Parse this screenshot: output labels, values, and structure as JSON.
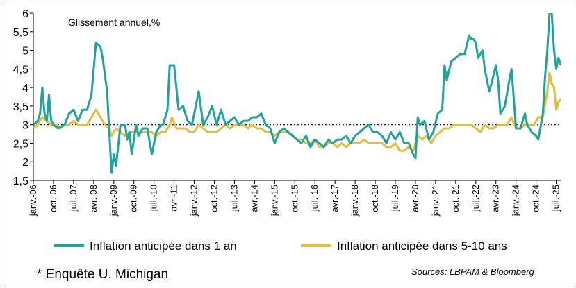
{
  "chart_data": {
    "type": "line",
    "title": "",
    "subtitle": "Glissement annuel,%",
    "xlabel": "",
    "ylabel": "",
    "ylim": [
      1.5,
      6
    ],
    "yticks": [
      "1,5",
      "2",
      "2,5",
      "3",
      "3,5",
      "4",
      "4,5",
      "5",
      "5,5",
      "6"
    ],
    "reference_line": 3,
    "x_start": "2006-01",
    "x_end": "2025-09",
    "xticks": [
      {
        "date": "2006-01",
        "label": "janv.-06"
      },
      {
        "date": "2006-10",
        "label": "oct.-06"
      },
      {
        "date": "2007-07",
        "label": "juil.-07"
      },
      {
        "date": "2008-04",
        "label": "avr.-08"
      },
      {
        "date": "2009-01",
        "label": "janv.-09"
      },
      {
        "date": "2009-10",
        "label": "oct.-09"
      },
      {
        "date": "2010-07",
        "label": "juil.-10"
      },
      {
        "date": "2011-04",
        "label": "avr.-11"
      },
      {
        "date": "2012-01",
        "label": "janv.-12"
      },
      {
        "date": "2012-10",
        "label": "oct.-12"
      },
      {
        "date": "2013-07",
        "label": "juil.-13"
      },
      {
        "date": "2014-04",
        "label": "avr.-14"
      },
      {
        "date": "2015-01",
        "label": "janv.-15"
      },
      {
        "date": "2015-10",
        "label": "oct.-15"
      },
      {
        "date": "2016-07",
        "label": "juil.-16"
      },
      {
        "date": "2017-04",
        "label": "avr.-17"
      },
      {
        "date": "2018-01",
        "label": "janv.-18"
      },
      {
        "date": "2018-10",
        "label": "oct.-18"
      },
      {
        "date": "2019-07",
        "label": "juil.-19"
      },
      {
        "date": "2020-04",
        "label": "avr.-20"
      },
      {
        "date": "2021-01",
        "label": "janv.-21"
      },
      {
        "date": "2021-10",
        "label": "oct.-21"
      },
      {
        "date": "2022-07",
        "label": "juil.-22"
      },
      {
        "date": "2023-04",
        "label": "avr.-23"
      },
      {
        "date": "2024-01",
        "label": "janv.-24"
      },
      {
        "date": "2024-10",
        "label": "oct.-24"
      },
      {
        "date": "2025-07",
        "label": "juil.-25"
      }
    ],
    "series": [
      {
        "name": "Inflation anticipée dans 1 an",
        "color": "#20a39e",
        "points": [
          [
            "2006-01",
            3.0
          ],
          [
            "2006-03",
            3.1
          ],
          [
            "2006-04",
            3.3
          ],
          [
            "2006-05",
            4.0
          ],
          [
            "2006-06",
            3.3
          ],
          [
            "2006-07",
            3.1
          ],
          [
            "2006-08",
            3.8
          ],
          [
            "2006-09",
            3.1
          ],
          [
            "2006-10",
            3.0
          ],
          [
            "2006-12",
            2.9
          ],
          [
            "2007-03",
            3.0
          ],
          [
            "2007-05",
            3.3
          ],
          [
            "2007-07",
            3.4
          ],
          [
            "2007-09",
            3.1
          ],
          [
            "2007-11",
            3.4
          ],
          [
            "2008-01",
            3.4
          ],
          [
            "2008-03",
            3.8
          ],
          [
            "2008-05",
            5.2
          ],
          [
            "2008-07",
            5.1
          ],
          [
            "2008-08",
            4.8
          ],
          [
            "2008-10",
            3.9
          ],
          [
            "2008-11",
            2.8
          ],
          [
            "2008-12",
            1.7
          ],
          [
            "2009-01",
            2.2
          ],
          [
            "2009-02",
            1.9
          ],
          [
            "2009-04",
            3.0
          ],
          [
            "2009-06",
            3.0
          ],
          [
            "2009-07",
            2.6
          ],
          [
            "2009-08",
            2.8
          ],
          [
            "2009-09",
            2.2
          ],
          [
            "2009-11",
            3.0
          ],
          [
            "2009-12",
            2.7
          ],
          [
            "2010-02",
            2.9
          ],
          [
            "2010-04",
            2.9
          ],
          [
            "2010-06",
            2.2
          ],
          [
            "2010-08",
            2.8
          ],
          [
            "2010-10",
            3.0
          ],
          [
            "2010-11",
            3.0
          ],
          [
            "2011-01",
            3.4
          ],
          [
            "2011-02",
            4.6
          ],
          [
            "2011-04",
            4.6
          ],
          [
            "2011-06",
            3.4
          ],
          [
            "2011-08",
            3.5
          ],
          [
            "2011-10",
            3.1
          ],
          [
            "2011-12",
            3.0
          ],
          [
            "2012-02",
            3.6
          ],
          [
            "2012-03",
            3.9
          ],
          [
            "2012-05",
            3.0
          ],
          [
            "2012-07",
            3.2
          ],
          [
            "2012-09",
            3.5
          ],
          [
            "2012-11",
            3.0
          ],
          [
            "2013-01",
            3.4
          ],
          [
            "2013-03",
            3.0
          ],
          [
            "2013-05",
            3.1
          ],
          [
            "2013-07",
            3.2
          ],
          [
            "2013-09",
            3.0
          ],
          [
            "2013-11",
            3.1
          ],
          [
            "2014-01",
            3.1
          ],
          [
            "2014-03",
            3.2
          ],
          [
            "2014-05",
            3.2
          ],
          [
            "2014-07",
            3.3
          ],
          [
            "2014-09",
            3.0
          ],
          [
            "2014-11",
            2.9
          ],
          [
            "2015-01",
            2.5
          ],
          [
            "2015-03",
            2.8
          ],
          [
            "2015-05",
            2.9
          ],
          [
            "2015-07",
            2.8
          ],
          [
            "2015-09",
            2.7
          ],
          [
            "2015-11",
            2.6
          ],
          [
            "2016-01",
            2.5
          ],
          [
            "2016-03",
            2.7
          ],
          [
            "2016-05",
            2.4
          ],
          [
            "2016-07",
            2.6
          ],
          [
            "2016-09",
            2.5
          ],
          [
            "2016-11",
            2.4
          ],
          [
            "2017-01",
            2.6
          ],
          [
            "2017-03",
            2.5
          ],
          [
            "2017-05",
            2.6
          ],
          [
            "2017-07",
            2.6
          ],
          [
            "2017-09",
            2.7
          ],
          [
            "2017-11",
            2.5
          ],
          [
            "2018-01",
            2.7
          ],
          [
            "2018-03",
            2.8
          ],
          [
            "2018-05",
            2.9
          ],
          [
            "2018-07",
            3.0
          ],
          [
            "2018-09",
            2.8
          ],
          [
            "2018-11",
            2.8
          ],
          [
            "2019-01",
            2.7
          ],
          [
            "2019-03",
            2.5
          ],
          [
            "2019-05",
            2.8
          ],
          [
            "2019-07",
            2.6
          ],
          [
            "2019-09",
            2.8
          ],
          [
            "2019-11",
            2.5
          ],
          [
            "2020-01",
            2.5
          ],
          [
            "2020-03",
            2.2
          ],
          [
            "2020-04",
            2.1
          ],
          [
            "2020-05",
            3.2
          ],
          [
            "2020-06",
            3.0
          ],
          [
            "2020-08",
            3.1
          ],
          [
            "2020-10",
            2.6
          ],
          [
            "2020-12",
            2.8
          ],
          [
            "2021-02",
            3.3
          ],
          [
            "2021-04",
            3.4
          ],
          [
            "2021-05",
            4.6
          ],
          [
            "2021-06",
            4.2
          ],
          [
            "2021-08",
            4.7
          ],
          [
            "2021-10",
            4.8
          ],
          [
            "2021-12",
            4.9
          ],
          [
            "2022-02",
            4.9
          ],
          [
            "2022-04",
            5.4
          ],
          [
            "2022-05",
            5.3
          ],
          [
            "2022-06",
            5.3
          ],
          [
            "2022-07",
            5.2
          ],
          [
            "2022-08",
            4.8
          ],
          [
            "2022-10",
            5.0
          ],
          [
            "2022-11",
            4.5
          ],
          [
            "2023-01",
            3.9
          ],
          [
            "2023-02",
            4.1
          ],
          [
            "2023-04",
            4.6
          ],
          [
            "2023-05",
            4.2
          ],
          [
            "2023-06",
            3.3
          ],
          [
            "2023-08",
            3.5
          ],
          [
            "2023-10",
            4.2
          ],
          [
            "2023-11",
            4.5
          ],
          [
            "2024-01",
            2.9
          ],
          [
            "2024-03",
            2.9
          ],
          [
            "2024-05",
            3.3
          ],
          [
            "2024-06",
            3.0
          ],
          [
            "2024-08",
            2.8
          ],
          [
            "2024-10",
            2.7
          ],
          [
            "2024-11",
            2.6
          ],
          [
            "2025-01",
            3.3
          ],
          [
            "2025-02",
            4.3
          ],
          [
            "2025-03",
            5.0
          ],
          [
            "2025-04",
            6.5
          ],
          [
            "2025-05",
            6.6
          ],
          [
            "2025-06",
            5.0
          ],
          [
            "2025-07",
            4.5
          ],
          [
            "2025-08",
            4.8
          ],
          [
            "2025-09",
            4.6
          ]
        ]
      },
      {
        "name": "Inflation anticipée dans 5-10 ans",
        "color": "#e6bc3e",
        "points": [
          [
            "2006-01",
            2.9
          ],
          [
            "2006-03",
            3.0
          ],
          [
            "2006-05",
            3.2
          ],
          [
            "2006-07",
            3.1
          ],
          [
            "2006-09",
            3.0
          ],
          [
            "2006-11",
            3.0
          ],
          [
            "2007-01",
            2.9
          ],
          [
            "2007-03",
            3.0
          ],
          [
            "2007-05",
            3.0
          ],
          [
            "2007-07",
            3.1
          ],
          [
            "2007-09",
            3.0
          ],
          [
            "2007-11",
            3.0
          ],
          [
            "2008-01",
            3.0
          ],
          [
            "2008-03",
            3.2
          ],
          [
            "2008-05",
            3.4
          ],
          [
            "2008-07",
            3.2
          ],
          [
            "2008-09",
            3.0
          ],
          [
            "2008-11",
            2.9
          ],
          [
            "2008-12",
            2.7
          ],
          [
            "2009-02",
            2.9
          ],
          [
            "2009-04",
            2.8
          ],
          [
            "2009-06",
            2.7
          ],
          [
            "2009-08",
            2.8
          ],
          [
            "2009-10",
            2.8
          ],
          [
            "2009-12",
            2.8
          ],
          [
            "2010-02",
            2.8
          ],
          [
            "2010-04",
            2.8
          ],
          [
            "2010-06",
            2.8
          ],
          [
            "2010-08",
            2.7
          ],
          [
            "2010-10",
            2.8
          ],
          [
            "2010-12",
            2.8
          ],
          [
            "2011-02",
            3.0
          ],
          [
            "2011-03",
            3.2
          ],
          [
            "2011-05",
            2.9
          ],
          [
            "2011-07",
            2.9
          ],
          [
            "2011-09",
            2.9
          ],
          [
            "2011-11",
            2.8
          ],
          [
            "2012-01",
            2.8
          ],
          [
            "2012-03",
            3.0
          ],
          [
            "2012-05",
            2.9
          ],
          [
            "2012-07",
            2.8
          ],
          [
            "2012-09",
            2.8
          ],
          [
            "2012-11",
            2.8
          ],
          [
            "2013-01",
            2.9
          ],
          [
            "2013-03",
            3.0
          ],
          [
            "2013-05",
            2.9
          ],
          [
            "2013-07",
            3.0
          ],
          [
            "2013-09",
            3.0
          ],
          [
            "2013-11",
            3.0
          ],
          [
            "2014-01",
            2.9
          ],
          [
            "2014-03",
            3.0
          ],
          [
            "2014-05",
            2.9
          ],
          [
            "2014-07",
            2.9
          ],
          [
            "2014-09",
            2.8
          ],
          [
            "2014-11",
            2.8
          ],
          [
            "2015-01",
            2.7
          ],
          [
            "2015-03",
            2.8
          ],
          [
            "2015-05",
            2.8
          ],
          [
            "2015-07",
            2.8
          ],
          [
            "2015-09",
            2.7
          ],
          [
            "2015-11",
            2.6
          ],
          [
            "2016-01",
            2.6
          ],
          [
            "2016-03",
            2.5
          ],
          [
            "2016-05",
            2.5
          ],
          [
            "2016-07",
            2.6
          ],
          [
            "2016-09",
            2.4
          ],
          [
            "2016-11",
            2.4
          ],
          [
            "2017-01",
            2.5
          ],
          [
            "2017-03",
            2.5
          ],
          [
            "2017-05",
            2.4
          ],
          [
            "2017-07",
            2.5
          ],
          [
            "2017-09",
            2.4
          ],
          [
            "2017-11",
            2.5
          ],
          [
            "2018-01",
            2.5
          ],
          [
            "2018-03",
            2.5
          ],
          [
            "2018-05",
            2.6
          ],
          [
            "2018-07",
            2.5
          ],
          [
            "2018-09",
            2.5
          ],
          [
            "2018-11",
            2.5
          ],
          [
            "2019-01",
            2.5
          ],
          [
            "2019-03",
            2.4
          ],
          [
            "2019-05",
            2.4
          ],
          [
            "2019-07",
            2.5
          ],
          [
            "2019-09",
            2.3
          ],
          [
            "2019-11",
            2.3
          ],
          [
            "2020-01",
            2.4
          ],
          [
            "2020-03",
            2.3
          ],
          [
            "2020-05",
            2.7
          ],
          [
            "2020-07",
            2.6
          ],
          [
            "2020-09",
            2.7
          ],
          [
            "2020-11",
            2.5
          ],
          [
            "2021-01",
            2.7
          ],
          [
            "2021-03",
            2.8
          ],
          [
            "2021-05",
            2.9
          ],
          [
            "2021-07",
            2.9
          ],
          [
            "2021-09",
            3.0
          ],
          [
            "2021-11",
            3.0
          ],
          [
            "2022-01",
            3.0
          ],
          [
            "2022-03",
            3.0
          ],
          [
            "2022-05",
            3.0
          ],
          [
            "2022-07",
            2.9
          ],
          [
            "2022-09",
            2.8
          ],
          [
            "2022-11",
            3.0
          ],
          [
            "2023-01",
            2.9
          ],
          [
            "2023-03",
            2.9
          ],
          [
            "2023-05",
            3.0
          ],
          [
            "2023-07",
            3.0
          ],
          [
            "2023-09",
            3.0
          ],
          [
            "2023-11",
            3.2
          ],
          [
            "2024-01",
            2.9
          ],
          [
            "2024-03",
            2.9
          ],
          [
            "2024-05",
            3.0
          ],
          [
            "2024-07",
            3.0
          ],
          [
            "2024-09",
            3.0
          ],
          [
            "2024-11",
            3.2
          ],
          [
            "2025-01",
            3.2
          ],
          [
            "2025-03",
            3.9
          ],
          [
            "2025-04",
            4.4
          ],
          [
            "2025-05",
            4.1
          ],
          [
            "2025-06",
            4.0
          ],
          [
            "2025-07",
            3.4
          ],
          [
            "2025-08",
            3.6
          ],
          [
            "2025-09",
            3.7
          ]
        ]
      }
    ]
  },
  "footnote": "* Enquête U. Michigan",
  "source": "Sources: LBPAM & Bloomberg"
}
